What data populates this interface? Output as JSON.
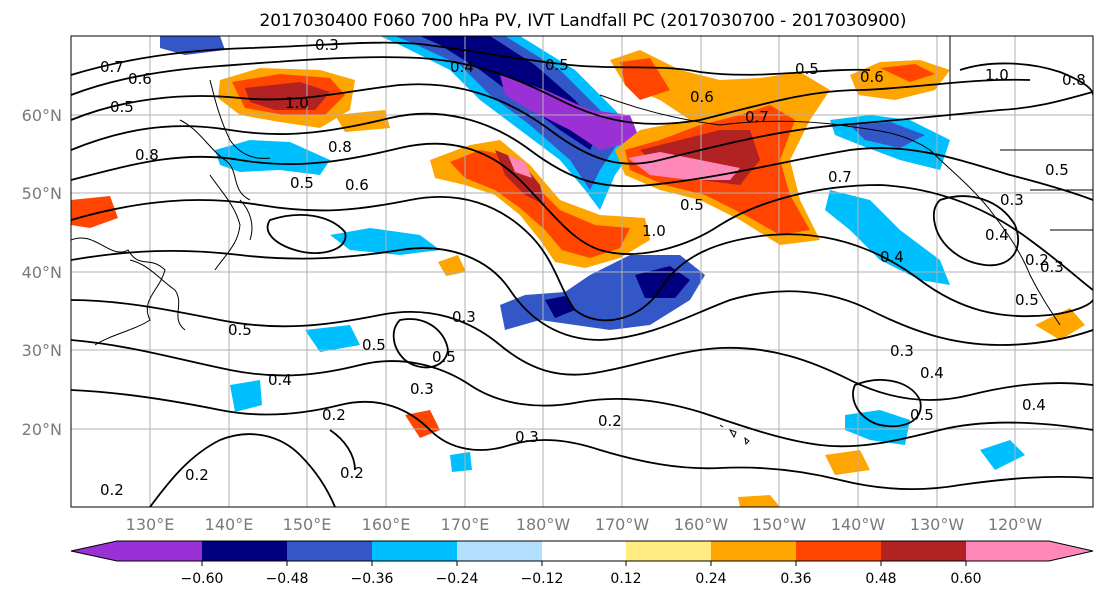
{
  "title": "2017030400 F060 700 hPa PV, IVT Landfall PC (2017030700 - 2017030900)",
  "lat_labels": [
    "60°N",
    "50°N",
    "40°N",
    "30°N",
    "20°N"
  ],
  "lon_labels": [
    "130°E",
    "140°E",
    "150°E",
    "160°E",
    "170°E",
    "180°W",
    "170°W",
    "160°W",
    "150°W",
    "140°W",
    "130°W",
    "120°W"
  ],
  "colorbar": {
    "colors": [
      "#9b30d6",
      "#00007f",
      "#3457c8",
      "#00bfff",
      "#b3e0ff",
      "#ffffff",
      "#ffeb80",
      "#ffa500",
      "#ff4500",
      "#b22222",
      "#ff88b8"
    ],
    "tick_labels": [
      "−0.60",
      "−0.48",
      "−0.36",
      "−0.24",
      "−0.12",
      "0.12",
      "0.24",
      "0.36",
      "0.48",
      "0.60"
    ]
  },
  "contour_labels": [
    "0.3",
    "0.7",
    "0.6",
    "0.5",
    "1.0",
    "0.8",
    "0.8",
    "0.5",
    "0.6",
    "0.4",
    "0.5",
    "0.6",
    "0.7",
    "0.5",
    "1.0",
    "0.7",
    "0.4",
    "0.5",
    "0.5",
    "0.8",
    "0.6",
    "0.5",
    "0.3",
    "0.4",
    "0.2",
    "0.5",
    "0.3",
    "0.5",
    "0.5",
    "0.4",
    "0.3",
    "0.2",
    "0.3",
    "0.2",
    "0.2",
    "0.2",
    "0.3",
    "0.4",
    "0.5",
    "0.4",
    "0.2",
    "0.3",
    "1.0"
  ],
  "colors": {
    "contour": "#000000",
    "grid": "#b0b0b0",
    "coast": "#000000"
  }
}
